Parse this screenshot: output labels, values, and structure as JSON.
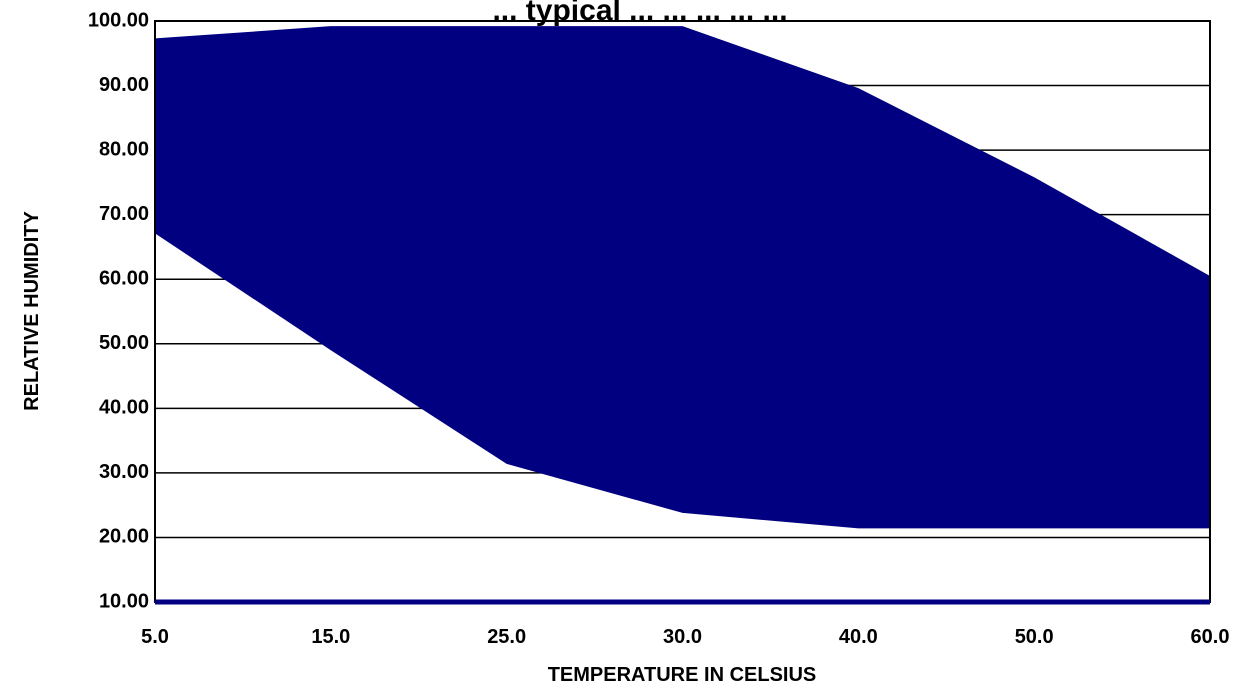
{
  "chart_data": {
    "type": "area",
    "title": "... typical ... ... ... ... ...",
    "xlabel": "TEMPERATURE IN CELSIUS",
    "ylabel": "RELATIVE HUMIDITY",
    "categories": [
      "5.0",
      "15.0",
      "25.0",
      "30.0",
      "40.0",
      "50.0",
      "60.0"
    ],
    "ylim": [
      10,
      100
    ],
    "yticks": [
      "10.00",
      "20.00",
      "30.00",
      "40.00",
      "50.00",
      "60.00",
      "70.00",
      "80.00",
      "90.00",
      "100.00"
    ],
    "series": [
      {
        "role": "upper",
        "values": [
          97.3,
          99.2,
          99.2,
          99.2,
          89.6,
          75.8,
          60.5
        ]
      },
      {
        "role": "lower",
        "values": [
          67.1,
          49.0,
          31.4,
          23.8,
          21.4,
          21.4,
          21.4
        ]
      }
    ],
    "grid": true,
    "legend": "none",
    "colors": {
      "fill": "#000080",
      "plot_border": "#000000",
      "grid": "#000000",
      "baseline": "#000080"
    }
  }
}
